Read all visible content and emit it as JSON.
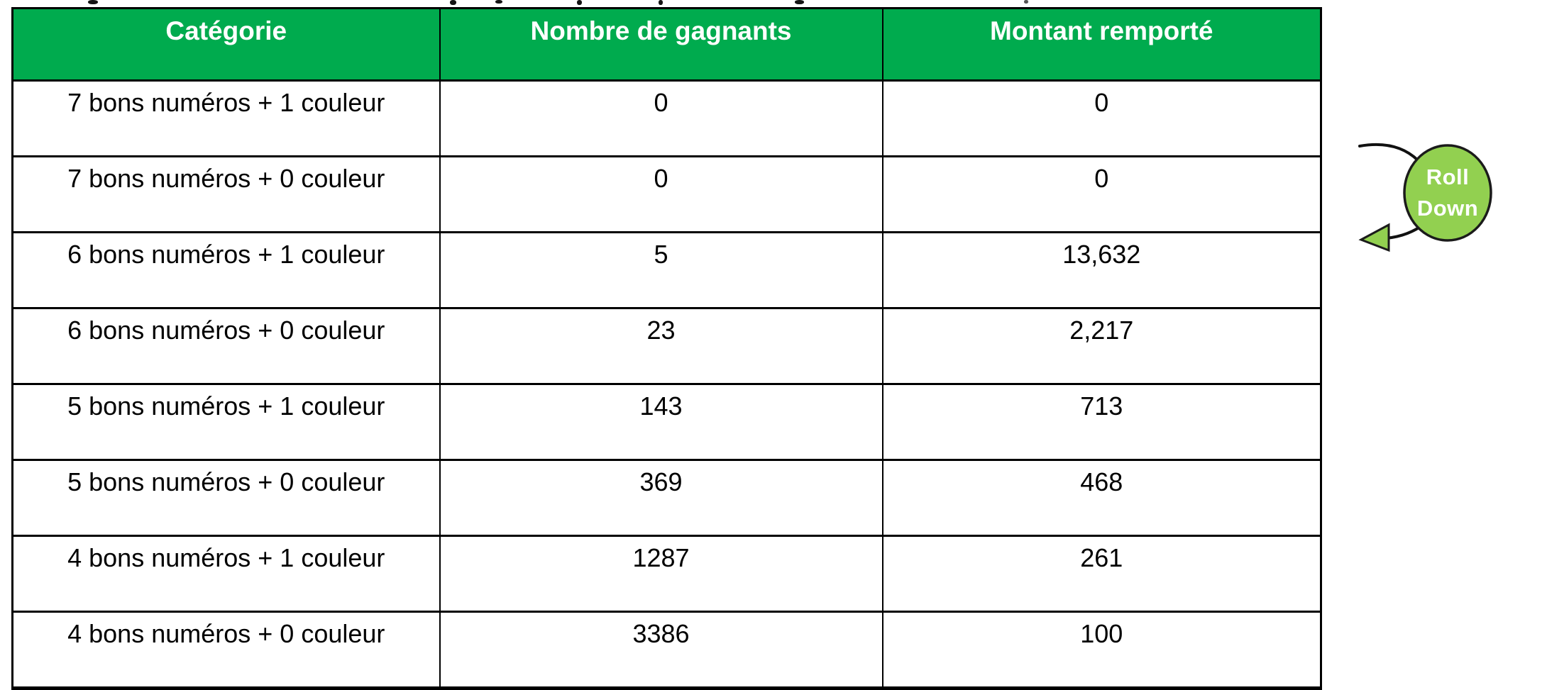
{
  "colors": {
    "header_bg": "#00AB4E",
    "header_text": "#FFFFFF",
    "body_text": "#000000",
    "table_border": "#000000",
    "badge_fill": "#92D050",
    "badge_stroke": "#1B1B1B",
    "badge_text": "#FFFFFF",
    "arrow_color": "#111111",
    "background": "#FFFFFF"
  },
  "table": {
    "columns": [
      "Catégorie",
      "Nombre de gagnants",
      "Montant remporté"
    ],
    "rows": [
      [
        "7 bons numéros + 1 couleur",
        "0",
        "0"
      ],
      [
        "7 bons numéros + 0 couleur",
        "0",
        "0"
      ],
      [
        "6 bons numéros + 1 couleur",
        "5",
        "13,632"
      ],
      [
        "6 bons numéros + 0 couleur",
        "23",
        "2,217"
      ],
      [
        "5 bons numéros + 1 couleur",
        "143",
        "713"
      ],
      [
        "5 bons numéros + 0 couleur",
        "369",
        "468"
      ],
      [
        "4 bons numéros + 1 couleur",
        "1287",
        "261"
      ],
      [
        "4 bons numéros + 0 couleur",
        "3386",
        "100"
      ]
    ]
  },
  "annotation": {
    "line1": "Roll",
    "line2": "Down"
  }
}
